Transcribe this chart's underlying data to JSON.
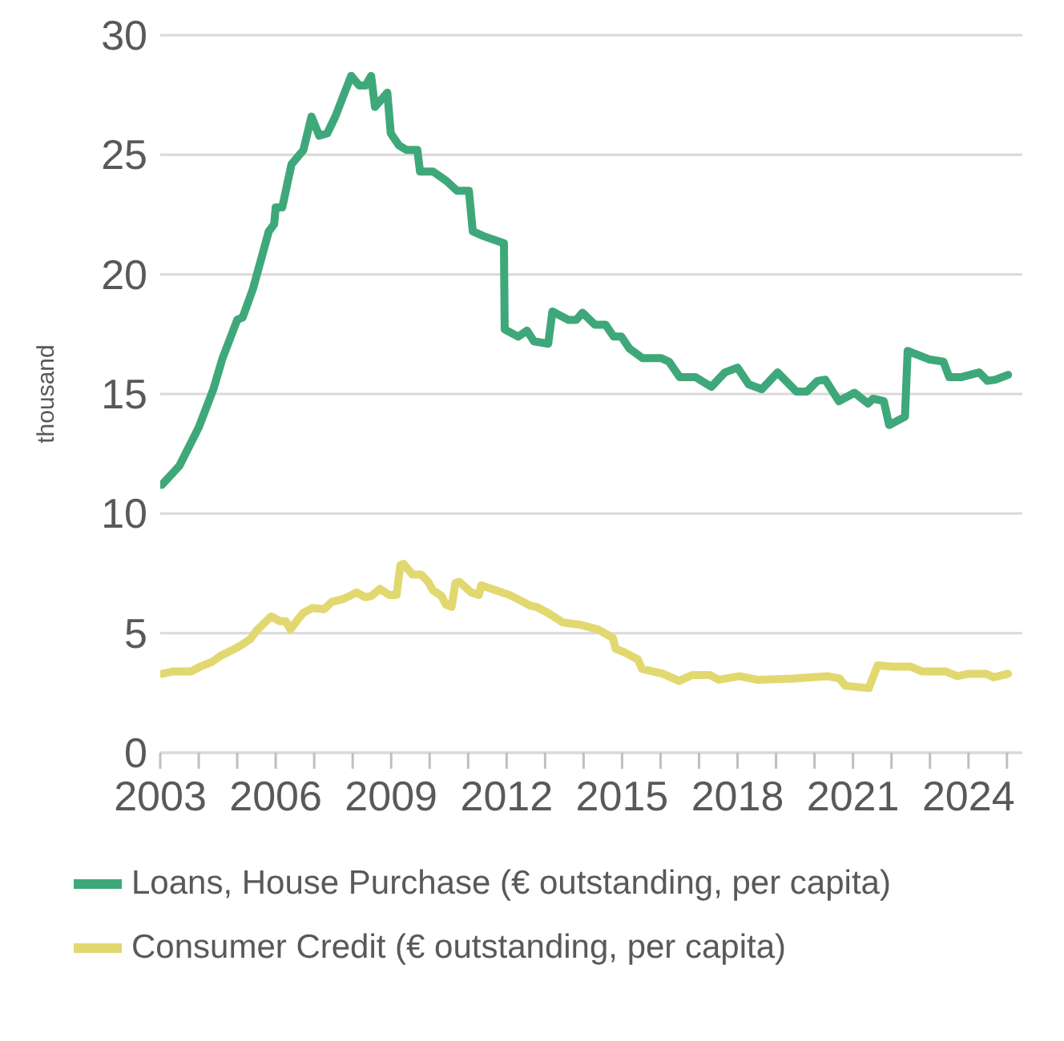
{
  "chart_data": {
    "type": "line",
    "ylabel": "thousand",
    "xlim": [
      2003,
      2025.4
    ],
    "xticks": [
      2003,
      {
        "value": 2004,
        "label": null
      },
      {
        "value": 2005,
        "label": null
      },
      2006,
      {
        "value": 2007,
        "label": null
      },
      {
        "value": 2008,
        "label": null
      },
      2009,
      {
        "value": 2010,
        "label": null
      },
      {
        "value": 2011,
        "label": null
      },
      2012,
      {
        "value": 2013,
        "label": null
      },
      {
        "value": 2014,
        "label": null
      },
      2015,
      {
        "value": 2016,
        "label": null
      },
      {
        "value": 2017,
        "label": null
      },
      2018,
      {
        "value": 2019,
        "label": null
      },
      {
        "value": 2020,
        "label": null
      },
      2021,
      {
        "value": 2022,
        "label": null
      },
      {
        "value": 2023,
        "label": null
      },
      2024,
      {
        "value": 2025,
        "label": null
      }
    ],
    "ylim": [
      0,
      30
    ],
    "yticks": [
      0,
      5,
      10,
      15,
      20,
      25,
      30
    ],
    "grid": "y",
    "legend": "bottom",
    "line_style": "solid",
    "marker": "none",
    "series": [
      {
        "name": "Loans, House Purchase (€ outstanding, per capita)",
        "color": "#3fa87a",
        "x": [
          2003.04,
          2003.5,
          2004.0,
          2004.38,
          2004.62,
          2005.0,
          2005.14,
          2005.41,
          2005.82,
          2005.96,
          2006.0,
          2006.17,
          2006.41,
          2006.72,
          2006.93,
          2007.13,
          2007.34,
          2007.55,
          2007.96,
          2008.17,
          2008.34,
          2008.48,
          2008.58,
          2008.9,
          2008.99,
          2009.2,
          2009.4,
          2009.68,
          2009.75,
          2010.09,
          2010.44,
          2010.71,
          2011.02,
          2011.12,
          2011.4,
          2011.93,
          2011.95,
          2012.3,
          2012.53,
          2012.71,
          2013.08,
          2013.19,
          2013.6,
          2013.81,
          2013.97,
          2014.29,
          2014.57,
          2014.78,
          2014.98,
          2015.19,
          2015.53,
          2016.02,
          2016.22,
          2016.5,
          2016.91,
          2017.32,
          2017.67,
          2018.0,
          2018.29,
          2018.63,
          2019.04,
          2019.53,
          2019.8,
          2020.08,
          2020.28,
          2020.63,
          2021.04,
          2021.39,
          2021.52,
          2021.8,
          2021.94,
          2022.35,
          2022.42,
          2022.97,
          2023.35,
          2023.5,
          2023.8,
          2024.28,
          2024.49,
          2024.7,
          2025.03
        ],
        "values": [
          11.2,
          12.0,
          13.6,
          15.2,
          16.5,
          18.1,
          18.2,
          19.4,
          21.8,
          22.1,
          22.8,
          22.8,
          24.6,
          25.2,
          26.6,
          25.8,
          25.9,
          26.6,
          28.3,
          27.9,
          27.9,
          28.3,
          27.0,
          27.6,
          25.9,
          25.4,
          25.2,
          25.2,
          24.3,
          24.3,
          23.9,
          23.5,
          23.5,
          21.8,
          21.6,
          21.3,
          17.7,
          17.4,
          17.65,
          17.2,
          17.1,
          18.45,
          18.1,
          18.1,
          18.4,
          17.9,
          17.9,
          17.4,
          17.4,
          16.9,
          16.5,
          16.5,
          16.35,
          15.7,
          15.7,
          15.3,
          15.9,
          16.1,
          15.4,
          15.2,
          15.9,
          15.1,
          15.1,
          15.55,
          15.6,
          14.7,
          15.05,
          14.6,
          14.8,
          14.7,
          13.7,
          14.05,
          16.8,
          16.45,
          16.35,
          15.7,
          15.7,
          15.9,
          15.55,
          15.6,
          15.8
        ]
      },
      {
        "name": "Consumer Credit (€ outstanding, per capita)",
        "color": "#e2d870",
        "x": [
          2003.05,
          2003.35,
          2003.81,
          2004.04,
          2004.35,
          2004.57,
          2004.88,
          2005.11,
          2005.34,
          2005.5,
          2005.88,
          2006.11,
          2006.26,
          2006.38,
          2006.59,
          2006.72,
          2006.95,
          2007.26,
          2007.45,
          2007.79,
          2008.1,
          2008.33,
          2008.48,
          2008.71,
          2008.94,
          2009.14,
          2009.24,
          2009.32,
          2009.55,
          2009.78,
          2009.96,
          2010.08,
          2010.31,
          2010.42,
          2010.57,
          2010.67,
          2010.77,
          2011.08,
          2011.28,
          2011.34,
          2011.62,
          2012.07,
          2012.38,
          2012.61,
          2012.77,
          2013.07,
          2013.46,
          2013.92,
          2014.38,
          2014.76,
          2014.83,
          2015.06,
          2015.41,
          2015.52,
          2016.06,
          2016.48,
          2016.82,
          2017.28,
          2017.51,
          2018.05,
          2018.51,
          2019.43,
          2020.34,
          2020.65,
          2020.8,
          2021.41,
          2021.64,
          2022.03,
          2022.49,
          2022.79,
          2023.4,
          2023.71,
          2024.01,
          2024.47,
          2024.65,
          2025.03
        ],
        "values": [
          3.3,
          3.4,
          3.4,
          3.6,
          3.8,
          4.05,
          4.3,
          4.5,
          4.75,
          5.1,
          5.7,
          5.5,
          5.5,
          5.15,
          5.6,
          5.85,
          6.05,
          6.0,
          6.3,
          6.45,
          6.7,
          6.5,
          6.55,
          6.85,
          6.6,
          6.6,
          7.85,
          7.9,
          7.45,
          7.45,
          7.15,
          6.8,
          6.55,
          6.2,
          6.1,
          7.1,
          7.15,
          6.7,
          6.6,
          7.0,
          6.85,
          6.6,
          6.35,
          6.15,
          6.1,
          5.85,
          5.45,
          5.35,
          5.15,
          4.8,
          4.35,
          4.2,
          3.9,
          3.5,
          3.3,
          3.0,
          3.25,
          3.25,
          3.05,
          3.2,
          3.05,
          3.1,
          3.2,
          3.1,
          2.8,
          2.7,
          3.65,
          3.6,
          3.6,
          3.4,
          3.4,
          3.2,
          3.3,
          3.3,
          3.15,
          3.3
        ]
      }
    ]
  }
}
